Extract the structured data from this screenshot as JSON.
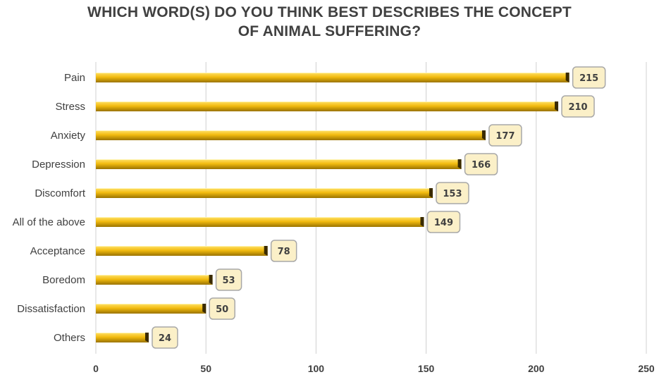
{
  "chart_data": {
    "type": "bar",
    "orientation": "horizontal",
    "title_lines": [
      "WHICH WORD(S) DO YOU THINK BEST DESCRIBES THE CONCEPT",
      "OF ANIMAL SUFFERING?"
    ],
    "categories": [
      "Pain",
      "Stress",
      "Anxiety",
      "Depression",
      "Discomfort",
      "All of the above",
      "Acceptance",
      "Boredom",
      "Dissatisfaction",
      "Others"
    ],
    "values": [
      215,
      210,
      177,
      166,
      153,
      149,
      78,
      53,
      50,
      24
    ],
    "xlabel": "",
    "ylabel": "",
    "xlim": [
      0,
      250
    ],
    "x_ticks": [
      0,
      50,
      100,
      150,
      200,
      250
    ],
    "grid": "vertical",
    "data_labels": true,
    "colors": {
      "bar_light": "#ffe26a",
      "bar_mid": "#f2bb0f",
      "bar_dark": "#9a7300",
      "bar_end": "#3a2b00",
      "label_fill": "#fbf0c8",
      "label_stroke": "#a8a8a8",
      "grid": "#d0d0d0"
    }
  }
}
